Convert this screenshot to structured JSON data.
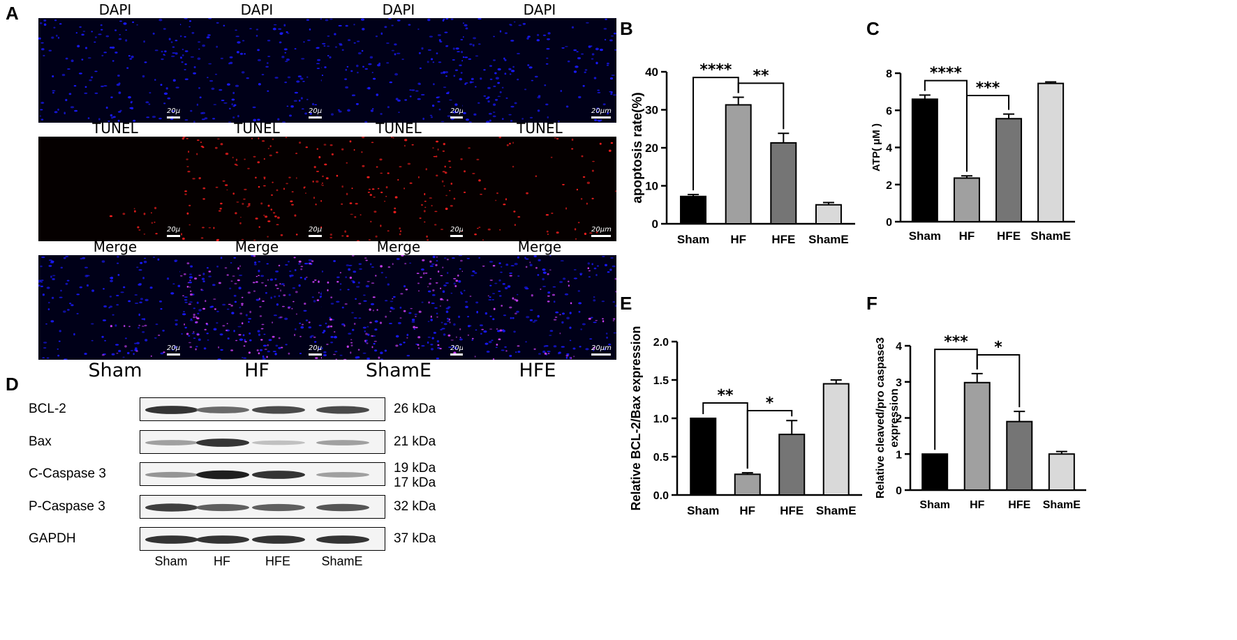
{
  "panels": {
    "a": "A",
    "b": "B",
    "c": "C",
    "d": "D",
    "e": "E",
    "f": "F"
  },
  "micrograph": {
    "row_labels": [
      "DAPI",
      "TUNEL",
      "Merge"
    ],
    "scale_bar": "20μm",
    "groups": [
      "Sham",
      "HF",
      "ShamE",
      "HFE"
    ],
    "colors": {
      "dapi": "#1a1aff",
      "tunel": "#ff2020",
      "merge": "#d040ff"
    },
    "tunel_intensity": [
      0.1,
      1.0,
      0.9,
      0.45
    ]
  },
  "western_blot": {
    "proteins": [
      {
        "name": "BCL-2",
        "kda": "26 kDa",
        "band_intensity": [
          0.85,
          0.6,
          0.75,
          0.75
        ]
      },
      {
        "name": "Bax",
        "kda": "21 kDa",
        "band_intensity": [
          0.35,
          0.85,
          0.2,
          0.35
        ]
      },
      {
        "name": "C-Caspase 3",
        "kda": "19 kDa",
        "kda2": "17 kDa",
        "band_intensity": [
          0.4,
          0.95,
          0.85,
          0.35
        ]
      },
      {
        "name": "P-Caspase 3",
        "kda": "32 kDa",
        "band_intensity": [
          0.8,
          0.65,
          0.65,
          0.7
        ]
      },
      {
        "name": "GAPDH",
        "kda": "37 kDa",
        "band_intensity": [
          0.85,
          0.85,
          0.85,
          0.85
        ]
      }
    ],
    "lanes": [
      "Sham",
      "HF",
      "HFE",
      "ShamE"
    ]
  },
  "chart_data": [
    {
      "type": "bar",
      "panel": "B",
      "categories": [
        "Sham",
        "HF",
        "HFE",
        "ShamE"
      ],
      "values": [
        7.2,
        31.3,
        21.3,
        5.0
      ],
      "errors": [
        0.5,
        2.0,
        2.5,
        0.6
      ],
      "colors": [
        "#000000",
        "#a0a0a0",
        "#757575",
        "#d9d9d9"
      ],
      "ylabel": "apoptosis rate(%)",
      "ylim": [
        0,
        40
      ],
      "yticks": [
        "0",
        "10",
        "20",
        "30",
        "40"
      ],
      "significance": [
        {
          "from": 0,
          "to": 1,
          "label": "****",
          "y": 38.5
        },
        {
          "from": 1,
          "to": 2,
          "label": "**",
          "y": 37.0
        }
      ]
    },
    {
      "type": "bar",
      "panel": "C",
      "categories": [
        "Sham",
        "HF",
        "HFE",
        "ShamE"
      ],
      "values": [
        6.6,
        2.35,
        5.55,
        7.45
      ],
      "errors": [
        0.22,
        0.12,
        0.25,
        0.08
      ],
      "colors": [
        "#000000",
        "#a0a0a0",
        "#757575",
        "#d9d9d9"
      ],
      "ylabel": "ATP( μM )",
      "ylim": [
        0,
        8
      ],
      "yticks": [
        "0",
        "2",
        "4",
        "6",
        "8"
      ],
      "significance": [
        {
          "from": 0,
          "to": 1,
          "label": "****",
          "y": 7.6
        },
        {
          "from": 1,
          "to": 2,
          "label": "***",
          "y": 6.8
        }
      ]
    },
    {
      "type": "bar",
      "panel": "E",
      "categories": [
        "Sham",
        "HF",
        "HFE",
        "ShamE"
      ],
      "values": [
        1.0,
        0.27,
        0.79,
        1.45
      ],
      "errors": [
        0.0,
        0.02,
        0.18,
        0.05
      ],
      "colors": [
        "#000000",
        "#a0a0a0",
        "#757575",
        "#d9d9d9"
      ],
      "ylabel": "Relative BCL-2/Bax expression",
      "ylim": [
        0,
        2.0
      ],
      "yticks": [
        "0.0",
        "0.5",
        "1.0",
        "1.5",
        "2.0"
      ],
      "significance": [
        {
          "from": 0,
          "to": 1,
          "label": "**",
          "y": 1.2
        },
        {
          "from": 1,
          "to": 2,
          "label": "*",
          "y": 1.1
        }
      ]
    },
    {
      "type": "bar",
      "panel": "F",
      "categories": [
        "Sham",
        "HF",
        "HFE",
        "ShamE"
      ],
      "values": [
        1.0,
        2.98,
        1.9,
        1.0
      ],
      "errors": [
        0.0,
        0.25,
        0.28,
        0.07
      ],
      "colors": [
        "#000000",
        "#a0a0a0",
        "#757575",
        "#d9d9d9"
      ],
      "ylabel": "Relative cleaved/pro caspase3 expression",
      "ylabel_lines": [
        "Relative cleaved/pro caspase3",
        "expression"
      ],
      "ylim": [
        0,
        4
      ],
      "yticks": [
        "0",
        "1",
        "2",
        "3",
        "4"
      ],
      "significance": [
        {
          "from": 0,
          "to": 1,
          "label": "***",
          "y": 3.9
        },
        {
          "from": 1,
          "to": 2,
          "label": "*",
          "y": 3.75
        }
      ]
    }
  ]
}
